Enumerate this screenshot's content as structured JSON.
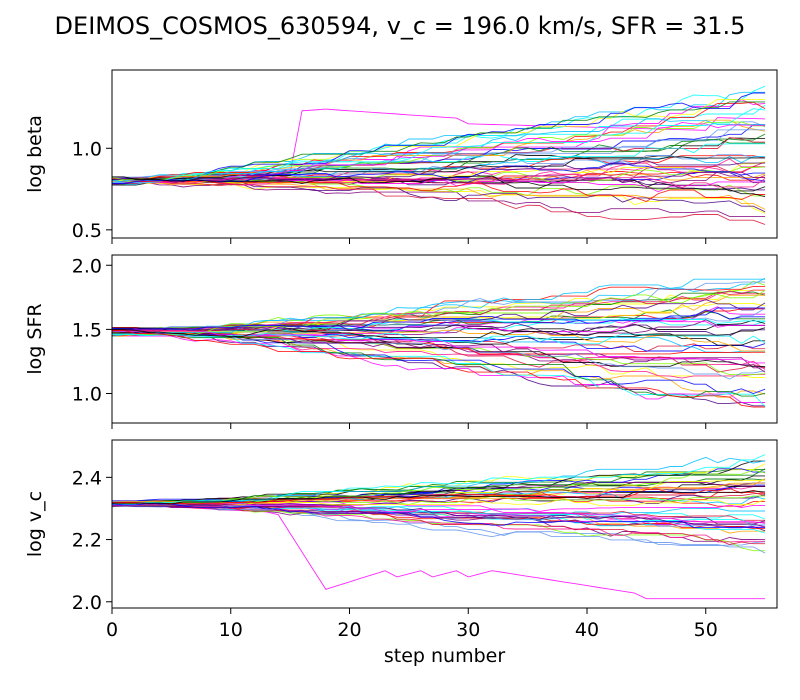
{
  "title": "DEIMOS_COSMOS_630594, v_c = 196.0 km/s, SFR = 31.5",
  "chart_data": {
    "type": "line",
    "title": "DEIMOS_COSMOS_630594, v_c = 196.0 km/s, SFR = 31.5",
    "xlabel": "step number",
    "x_range": [
      0,
      56
    ],
    "x_ticks": [
      0,
      10,
      20,
      30,
      40,
      50
    ],
    "n_walkers": 50,
    "n_steps": 56,
    "walker_colors": [
      "#ff00ff",
      "#00ffff",
      "#ff0000",
      "#0000ff",
      "#000000",
      "#008000",
      "#ffa500",
      "#ffff00",
      "#6495ed",
      "#800080",
      "#ff1493",
      "#00bfff",
      "#dc143c",
      "#4b0082",
      "#7cfc00"
    ],
    "grid": false,
    "legend": "none",
    "panels": [
      {
        "ylabel": "log beta",
        "ylim": [
          0.45,
          1.48
        ],
        "y_ticks": [
          0.5,
          1.0
        ],
        "initial_value": 0.8,
        "final_spread": [
          0.5,
          1.4
        ],
        "outlier_walker": {
          "color": "#ff00ff",
          "peak_step": 18,
          "peak_value": 1.24
        }
      },
      {
        "ylabel": "log SFR",
        "ylim": [
          0.77,
          2.08
        ],
        "y_ticks": [
          1.0,
          1.5,
          2.0
        ],
        "initial_value": 1.48,
        "final_spread": [
          0.85,
          2.0
        ]
      },
      {
        "ylabel": "log v_c",
        "ylim": [
          1.98,
          2.52
        ],
        "y_ticks": [
          2.0,
          2.2,
          2.4
        ],
        "initial_value": 2.315,
        "final_spread": [
          2.15,
          2.48
        ],
        "outlier_walker": {
          "color": "#ff00ff",
          "low_step": 18,
          "low_value": 2.04,
          "final_value": 2.01
        }
      }
    ]
  }
}
